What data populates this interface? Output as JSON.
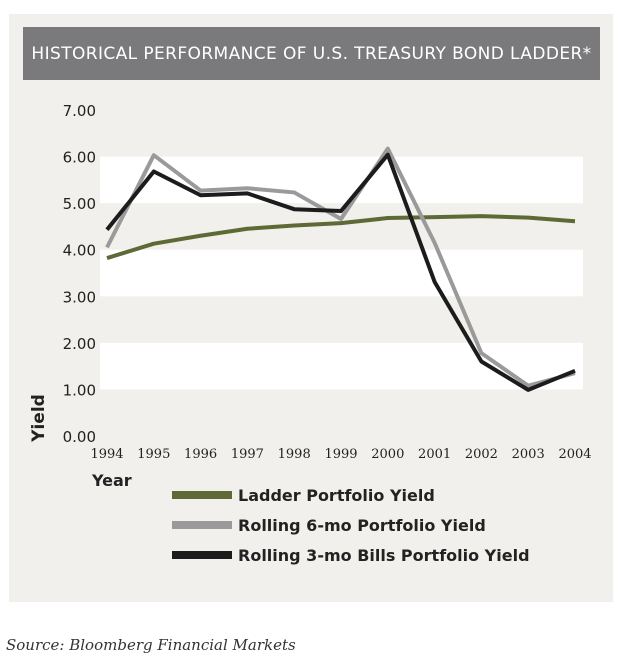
{
  "header": {
    "title": "HISTORICAL PERFORMANCE OF U.S. TREASURY BOND LADDER*"
  },
  "source": "Source: Bloomberg Financial Markets",
  "chart_data": {
    "type": "line",
    "title": "HISTORICAL PERFORMANCE OF U.S. TREASURY BOND LADDER*",
    "xlabel": "Year",
    "ylabel": "Yield",
    "x": [
      "1994",
      "1995",
      "1996",
      "1997",
      "1998",
      "1999",
      "2000",
      "2001",
      "2002",
      "2003",
      "2004"
    ],
    "ylim": [
      0,
      7
    ],
    "yticks": [
      "0.00",
      "1.00",
      "2.00",
      "3.00",
      "4.00",
      "5.00",
      "6.00",
      "7.00"
    ],
    "grid": "alternating horizontal bands",
    "legend_position": "bottom",
    "series": [
      {
        "name": "Ladder Portfolio Yield",
        "color": "#5d6a36",
        "values": [
          3.82,
          4.13,
          4.3,
          4.45,
          4.52,
          4.57,
          4.68,
          4.7,
          4.72,
          4.69,
          4.61
        ]
      },
      {
        "name": "Rolling 6-mo Portfolio Yield",
        "color": "#9a9a9a",
        "values": [
          4.05,
          6.03,
          5.27,
          5.32,
          5.23,
          4.66,
          6.17,
          4.15,
          1.78,
          1.08,
          1.35
        ]
      },
      {
        "name": "Rolling 3-mo Bills Portfolio Yield",
        "color": "#1c1c1c",
        "values": [
          4.43,
          5.68,
          5.17,
          5.21,
          4.87,
          4.83,
          6.04,
          3.31,
          1.6,
          0.99,
          1.4
        ]
      }
    ]
  }
}
